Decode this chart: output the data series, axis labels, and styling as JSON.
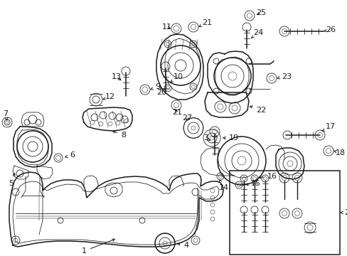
{
  "bg_color": "#ffffff",
  "line_color": "#1a1a1a",
  "fig_width": 4.89,
  "fig_height": 3.6,
  "dpi": 100,
  "font_size": 8.0,
  "lw_main": 1.1,
  "lw_thin": 0.55,
  "lw_xtra": 0.35
}
